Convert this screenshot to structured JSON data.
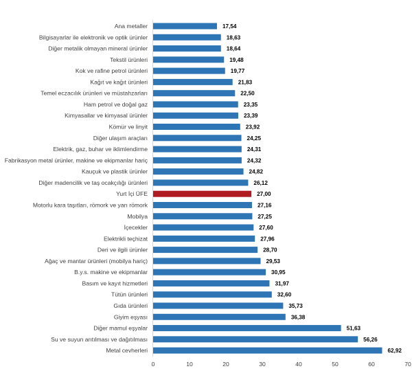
{
  "chart_data": {
    "type": "bar",
    "orientation": "horizontal",
    "title": "",
    "xlabel": "",
    "ylabel": "",
    "xlim": [
      0,
      70
    ],
    "xticks": [
      0,
      10,
      20,
      30,
      40,
      50,
      60,
      70
    ],
    "grid": false,
    "legend": "none",
    "colors": {
      "default": "#2e75b6",
      "highlight": "#b01c22"
    },
    "highlight_category": "Yurt İçi ÜFE",
    "categories": [
      "Ana metaller",
      "Bilgisayarlar ile elektronik ve optik ürünler",
      "Diğer metalik olmayan mineral ürünler",
      "Tekstil ürünleri",
      "Kok ve rafine petrol ürünleri",
      "Kağıt ve kağıt ürünleri",
      "Temel eczacılık ürünleri ve müstahzarları",
      "Ham petrol ve doğal gaz",
      "Kimyasallar ve kimyasal ürünler",
      "Kömür ve linyit",
      "Diğer ulaşım araçları",
      "Elektrik, gaz, buhar ve iklimlendirme",
      "Fabrikasyon metal ürünler, makine ve ekipmanlar hariç",
      "Kauçuk ve plastik ürünler",
      "Diğer madencilik ve taş ocakçılığı ürünleri",
      "Yurt İçi ÜFE",
      "Motorlu kara taşıtları, römork ve yarı römork",
      "Mobilya",
      "İçecekler",
      "Elektrikli teçhizat",
      "Deri ve ilgili ürünler",
      "Ağaç ve mantar ürünleri (mobilya hariç)",
      "B.y.s. makine ve ekipmanlar",
      "Basım ve kayıt hizmetleri",
      "Tütün ürünleri",
      "Gıda ürünleri",
      "Giyim eşyası",
      "Diğer mamul eşyalar",
      "Su ve suyun arıtılması ve dağıtılması",
      "Metal cevherleri"
    ],
    "values": [
      17.54,
      18.63,
      18.64,
      19.48,
      19.77,
      21.83,
      22.5,
      23.35,
      23.39,
      23.92,
      24.25,
      24.31,
      24.32,
      24.82,
      26.12,
      27.0,
      27.16,
      27.25,
      27.6,
      27.96,
      28.7,
      29.53,
      30.95,
      31.97,
      32.6,
      35.73,
      36.38,
      51.63,
      56.26,
      62.92
    ],
    "value_labels": [
      "17,54",
      "18,63",
      "18,64",
      "19,48",
      "19,77",
      "21,83",
      "22,50",
      "23,35",
      "23,39",
      "23,92",
      "24,25",
      "24,31",
      "24,32",
      "24,82",
      "26,12",
      "27,00",
      "27,16",
      "27,25",
      "27,60",
      "27,96",
      "28,70",
      "29,53",
      "30,95",
      "31,97",
      "32,60",
      "35,73",
      "36,38",
      "51,63",
      "56,26",
      "62,92"
    ]
  }
}
